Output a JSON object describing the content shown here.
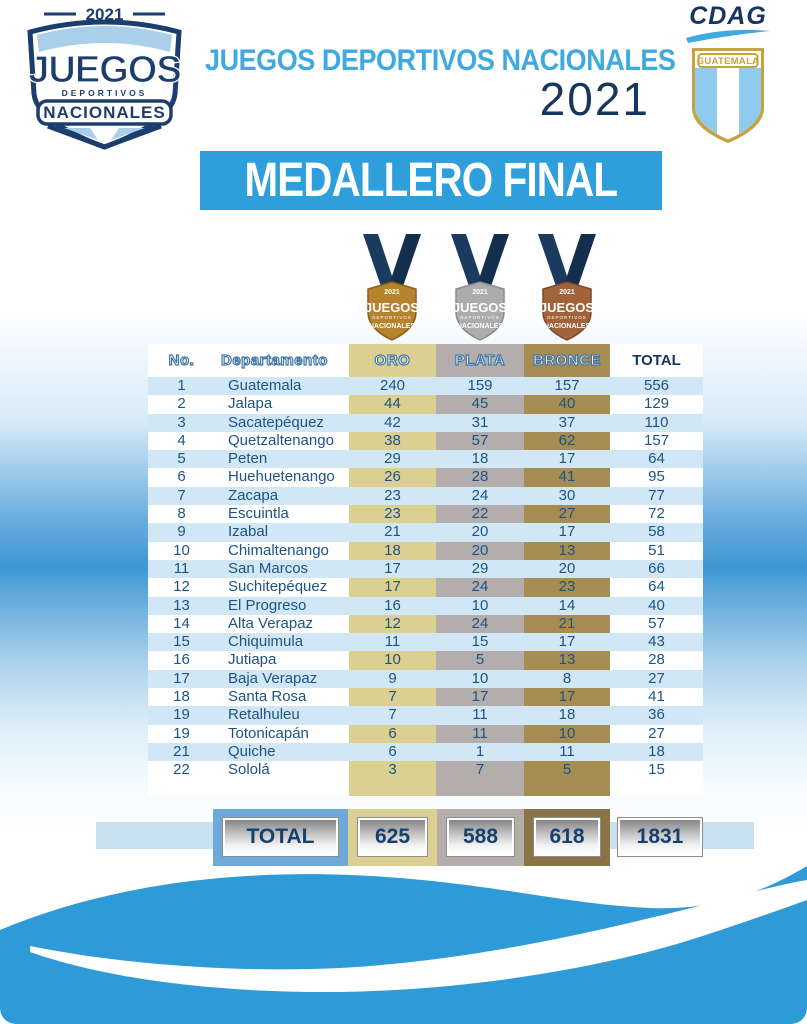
{
  "page": {
    "title_line1": "JUEGOS DEPORTIVOS NACIONALES",
    "title_year": "2021",
    "banner": "MEDALLERO FINAL"
  },
  "logo_left": {
    "year": "2021",
    "word1": "JUEGOS",
    "word2": "DEPORTIVOS",
    "word3": "NACIONALES"
  },
  "logo_right": {
    "org": "CDAG",
    "country": "GUATEMALA"
  },
  "medal_labels": {
    "year": "2021",
    "line1": "JUEGOS",
    "line2": "DEPORTIVOS",
    "line3": "NACIONALES"
  },
  "table": {
    "columns": [
      "No.",
      "Departamento",
      "ORO",
      "PLATA",
      "BRONCE",
      "TOTAL"
    ],
    "rows": [
      {
        "no": "1",
        "dep": "Guatemala",
        "oro": "240",
        "plata": "159",
        "bronce": "157",
        "total": "556"
      },
      {
        "no": "2",
        "dep": "Jalapa",
        "oro": "44",
        "plata": "45",
        "bronce": "40",
        "total": "129"
      },
      {
        "no": "3",
        "dep": "Sacatepéquez",
        "oro": "42",
        "plata": "31",
        "bronce": "37",
        "total": "110"
      },
      {
        "no": "4",
        "dep": "Quetzaltenango",
        "oro": "38",
        "plata": "57",
        "bronce": "62",
        "total": "157"
      },
      {
        "no": "5",
        "dep": "Peten",
        "oro": "29",
        "plata": "18",
        "bronce": "17",
        "total": "64"
      },
      {
        "no": "6",
        "dep": "Huehuetenango",
        "oro": "26",
        "plata": "28",
        "bronce": "41",
        "total": "95"
      },
      {
        "no": "7",
        "dep": "Zacapa",
        "oro": "23",
        "plata": "24",
        "bronce": "30",
        "total": "77"
      },
      {
        "no": "8",
        "dep": "Escuintla",
        "oro": "23",
        "plata": "22",
        "bronce": "27",
        "total": "72"
      },
      {
        "no": "9",
        "dep": "Izabal",
        "oro": "21",
        "plata": "20",
        "bronce": "17",
        "total": "58"
      },
      {
        "no": "10",
        "dep": "Chimaltenango",
        "oro": "18",
        "plata": "20",
        "bronce": "13",
        "total": "51"
      },
      {
        "no": "11",
        "dep": "San Marcos",
        "oro": "17",
        "plata": "29",
        "bronce": "20",
        "total": "66"
      },
      {
        "no": "12",
        "dep": "Suchitepéquez",
        "oro": "17",
        "plata": "24",
        "bronce": "23",
        "total": "64"
      },
      {
        "no": "13",
        "dep": "El Progreso",
        "oro": "16",
        "plata": "10",
        "bronce": "14",
        "total": "40"
      },
      {
        "no": "14",
        "dep": "Alta Verapaz",
        "oro": "12",
        "plata": "24",
        "bronce": "21",
        "total": "57"
      },
      {
        "no": "15",
        "dep": "Chiquimula",
        "oro": "11",
        "plata": "15",
        "bronce": "17",
        "total": "43"
      },
      {
        "no": "16",
        "dep": "Jutiapa",
        "oro": "10",
        "plata": "5",
        "bronce": "13",
        "total": "28"
      },
      {
        "no": "17",
        "dep": "Baja Verapaz",
        "oro": "9",
        "plata": "10",
        "bronce": "8",
        "total": "27"
      },
      {
        "no": "18",
        "dep": "Santa Rosa",
        "oro": "7",
        "plata": "17",
        "bronce": "17",
        "total": "41"
      },
      {
        "no": "19",
        "dep": "Retalhuleu",
        "oro": "7",
        "plata": "11",
        "bronce": "18",
        "total": "36"
      },
      {
        "no": "19",
        "dep": "Totonicapán",
        "oro": "6",
        "plata": "11",
        "bronce": "10",
        "total": "27"
      },
      {
        "no": "21",
        "dep": "Quiche",
        "oro": "6",
        "plata": "1",
        "bronce": "11",
        "total": "18"
      },
      {
        "no": "22",
        "dep": "Sololá",
        "oro": "3",
        "plata": "7",
        "bronce": "5",
        "total": "15"
      }
    ],
    "footer": {
      "label": "TOTAL",
      "oro": "625",
      "plata": "588",
      "bronce": "618",
      "total": "1831"
    }
  },
  "colors": {
    "accent_blue": "#2E9FDB",
    "title_blue": "#3FA9E1",
    "navy": "#16365C",
    "table_text": "#1D5385",
    "row_stripe": "#D2E7F6",
    "oro": "#DBD092",
    "plata": "#B3AEAB",
    "bronce": "#A58D52",
    "bronce_dark": "#8A7345",
    "total_box_blue": "#6FA9DA",
    "band_blue": "#C7E1F3",
    "wave_blue": "#2E9BD8",
    "medal_gold": "#B5832D",
    "medal_silver": "#ACACAC",
    "medal_bronze": "#A1633B",
    "ribbon_navy": "#1B3A5F"
  }
}
